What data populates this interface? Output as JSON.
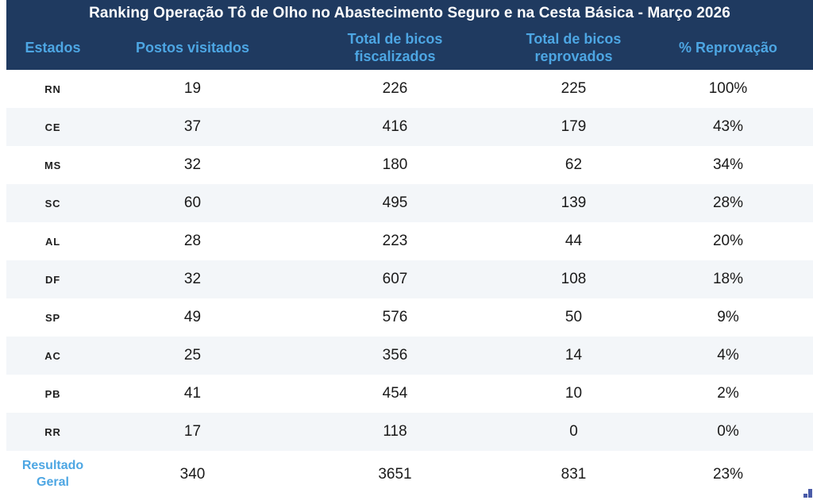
{
  "header": {
    "title": "Ranking Operação Tô de Olho no Abastecimento Seguro e na Cesta Básica - Março 2026",
    "columns": {
      "estados": "Estados",
      "postos": "Postos visitados",
      "fiscalizados": "Total de bicos fiscalizados",
      "reprovados": "Total de bicos reprovados",
      "reprovacao": "% Reprovação"
    }
  },
  "table": {
    "rows": [
      {
        "estado": "RN",
        "postos": "19",
        "fiscalizados": "226",
        "reprovados": "225",
        "reprovacao": "100%"
      },
      {
        "estado": "CE",
        "postos": "37",
        "fiscalizados": "416",
        "reprovados": "179",
        "reprovacao": "43%"
      },
      {
        "estado": "MS",
        "postos": "32",
        "fiscalizados": "180",
        "reprovados": "62",
        "reprovacao": "34%"
      },
      {
        "estado": "SC",
        "postos": "60",
        "fiscalizados": "495",
        "reprovados": "139",
        "reprovacao": "28%"
      },
      {
        "estado": "AL",
        "postos": "28",
        "fiscalizados": "223",
        "reprovados": "44",
        "reprovacao": "20%"
      },
      {
        "estado": "DF",
        "postos": "32",
        "fiscalizados": "607",
        "reprovados": "108",
        "reprovacao": "18%"
      },
      {
        "estado": "SP",
        "postos": "49",
        "fiscalizados": "576",
        "reprovados": "50",
        "reprovacao": "9%"
      },
      {
        "estado": "AC",
        "postos": "25",
        "fiscalizados": "356",
        "reprovados": "14",
        "reprovacao": "4%"
      },
      {
        "estado": "PB",
        "postos": "41",
        "fiscalizados": "454",
        "reprovados": "10",
        "reprovacao": "2%"
      },
      {
        "estado": "RR",
        "postos": "17",
        "fiscalizados": "118",
        "reprovados": "0",
        "reprovacao": "0%"
      }
    ],
    "footer": {
      "label": "Resultado Geral",
      "postos": "340",
      "fiscalizados": "3651",
      "reprovados": "831",
      "reprovacao": "23%"
    }
  },
  "colors": {
    "header_bg": "#1F3A60",
    "title_text": "#FFFFFF",
    "column_header_text": "#4DA6E3",
    "row_alt_bg": "#F3F6F9",
    "value_text": "#1A1A1A",
    "footer_label_text": "#4DA6E3",
    "corner_glyph": "#4A5BA8"
  },
  "chart_data": {
    "type": "table",
    "title": "Ranking Operação Tô de Olho no Abastecimento Seguro e na Cesta Básica - Março 2026",
    "columns": [
      "Estados",
      "Postos visitados",
      "Total de bicos fiscalizados",
      "Total de bicos reprovados",
      "% Reprovação"
    ],
    "rows": [
      [
        "RN",
        19,
        226,
        225,
        "100%"
      ],
      [
        "CE",
        37,
        416,
        179,
        "43%"
      ],
      [
        "MS",
        32,
        180,
        62,
        "34%"
      ],
      [
        "SC",
        60,
        495,
        139,
        "28%"
      ],
      [
        "AL",
        28,
        223,
        44,
        "20%"
      ],
      [
        "DF",
        32,
        607,
        108,
        "18%"
      ],
      [
        "SP",
        49,
        576,
        50,
        "9%"
      ],
      [
        "AC",
        25,
        356,
        14,
        "4%"
      ],
      [
        "PB",
        41,
        454,
        10,
        "2%"
      ],
      [
        "RR",
        17,
        118,
        0,
        "0%"
      ]
    ],
    "footer_row": [
      "Resultado Geral",
      340,
      3651,
      831,
      "23%"
    ],
    "layout": {
      "striped": true,
      "sorted_by": "% Reprovação desc"
    }
  }
}
